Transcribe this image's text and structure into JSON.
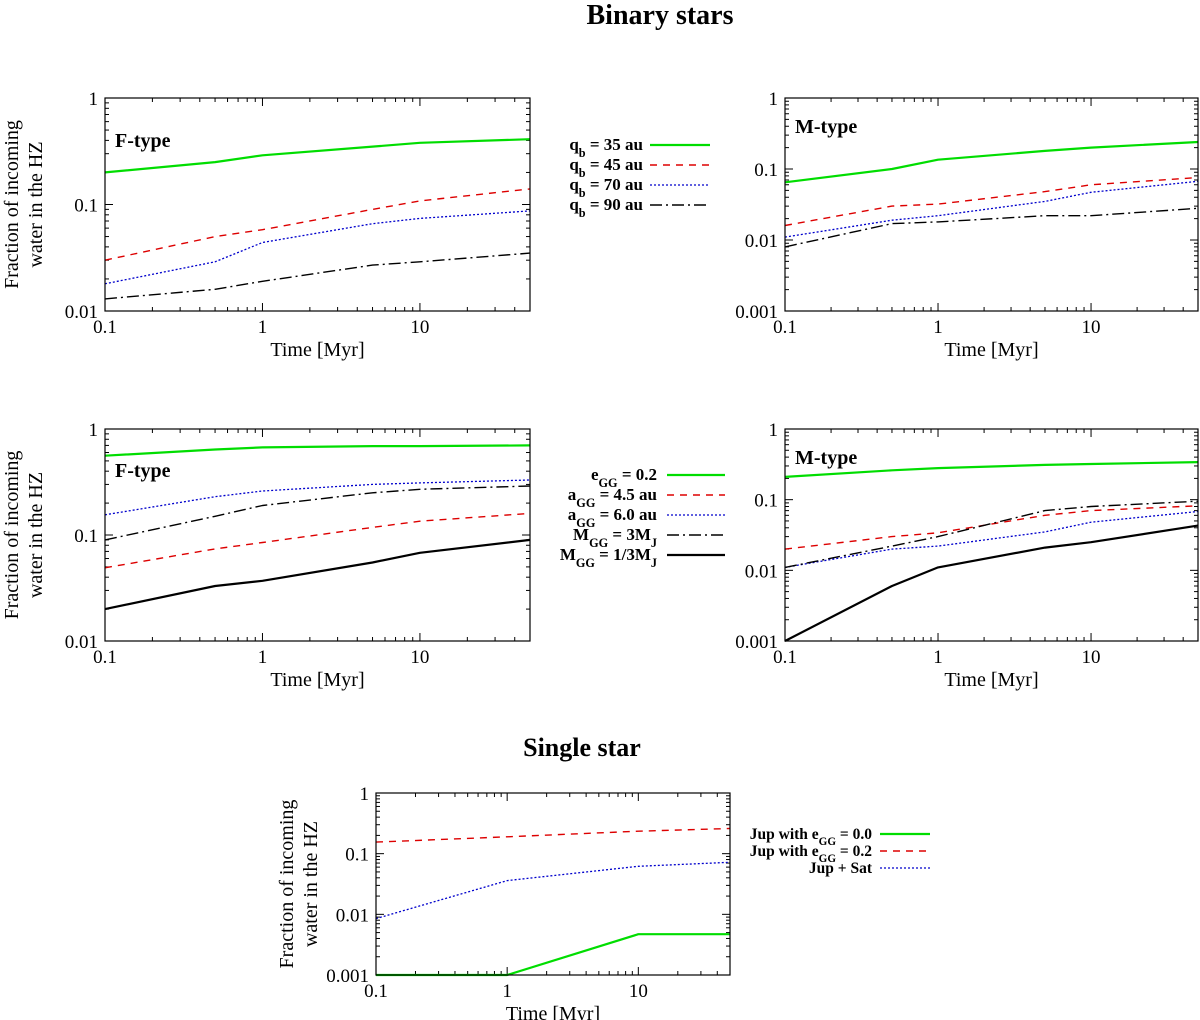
{
  "colors": {
    "green": "#00dd00",
    "red": "#dd0000",
    "blue": "#0000cc",
    "black": "#000000"
  },
  "figure": {
    "title_binary": "Binary stars",
    "title_single": "Single star"
  },
  "chart_data": [
    {
      "id": "tl",
      "type": "line",
      "annotation": "F-type",
      "xlabel": "Time [Myr]",
      "ylabel": [
        "Fraction of incoming",
        "water in the HZ"
      ],
      "xscale": "log",
      "yscale": "log",
      "xlim": [
        0.1,
        50
      ],
      "ylim": [
        0.01,
        1
      ],
      "xticks": [
        {
          "v": 0.1,
          "label": "0.1"
        },
        {
          "v": 1,
          "label": "1"
        },
        {
          "v": 10,
          "label": "10"
        }
      ],
      "yticks": [
        {
          "v": 0.01,
          "label": "0.01"
        },
        {
          "v": 0.1,
          "label": "0.1"
        },
        {
          "v": 1,
          "label": "1"
        }
      ],
      "series": [
        {
          "style": "solid-green",
          "x": [
            0.1,
            0.5,
            1,
            5,
            10,
            50
          ],
          "y": [
            0.2,
            0.25,
            0.29,
            0.35,
            0.38,
            0.41
          ]
        },
        {
          "style": "dash-red",
          "x": [
            0.1,
            0.5,
            1,
            5,
            10,
            50
          ],
          "y": [
            0.03,
            0.05,
            0.058,
            0.09,
            0.108,
            0.14
          ]
        },
        {
          "style": "dot-blue",
          "x": [
            0.1,
            0.5,
            1,
            5,
            10,
            50
          ],
          "y": [
            0.018,
            0.029,
            0.044,
            0.066,
            0.074,
            0.087
          ]
        },
        {
          "style": "dashdot-black",
          "x": [
            0.1,
            0.5,
            1,
            5,
            10,
            50
          ],
          "y": [
            0.013,
            0.016,
            0.019,
            0.027,
            0.029,
            0.035
          ]
        }
      ]
    },
    {
      "id": "tr",
      "type": "line",
      "annotation": "M-type",
      "xlabel": "Time [Myr]",
      "ylabel": null,
      "xscale": "log",
      "yscale": "log",
      "xlim": [
        0.1,
        50
      ],
      "ylim": [
        0.001,
        1
      ],
      "xticks": [
        {
          "v": 0.1,
          "label": "0.1"
        },
        {
          "v": 1,
          "label": "1"
        },
        {
          "v": 10,
          "label": "10"
        }
      ],
      "yticks": [
        {
          "v": 0.001,
          "label": "0.001"
        },
        {
          "v": 0.01,
          "label": "0.01"
        },
        {
          "v": 0.1,
          "label": "0.1"
        },
        {
          "v": 1,
          "label": "1"
        }
      ],
      "series": [
        {
          "style": "solid-green",
          "x": [
            0.1,
            0.5,
            1,
            5,
            10,
            50
          ],
          "y": [
            0.065,
            0.1,
            0.135,
            0.18,
            0.2,
            0.24
          ]
        },
        {
          "style": "dash-red",
          "x": [
            0.1,
            0.5,
            1,
            5,
            10,
            50
          ],
          "y": [
            0.016,
            0.03,
            0.032,
            0.048,
            0.06,
            0.076
          ]
        },
        {
          "style": "dot-blue",
          "x": [
            0.1,
            0.5,
            1,
            5,
            10,
            50
          ],
          "y": [
            0.011,
            0.019,
            0.022,
            0.035,
            0.047,
            0.067
          ]
        },
        {
          "style": "dashdot-black",
          "x": [
            0.1,
            0.5,
            1,
            5,
            10,
            50
          ],
          "y": [
            0.008,
            0.017,
            0.018,
            0.022,
            0.022,
            0.028
          ]
        }
      ]
    },
    {
      "id": "ml",
      "type": "line",
      "annotation": "F-type",
      "xlabel": "Time [Myr]",
      "ylabel": [
        "Fraction of incoming",
        "water in the HZ"
      ],
      "xscale": "log",
      "yscale": "log",
      "xlim": [
        0.1,
        50
      ],
      "ylim": [
        0.01,
        1
      ],
      "xticks": [
        {
          "v": 0.1,
          "label": "0.1"
        },
        {
          "v": 1,
          "label": "1"
        },
        {
          "v": 10,
          "label": "10"
        }
      ],
      "yticks": [
        {
          "v": 0.01,
          "label": "0.01"
        },
        {
          "v": 0.1,
          "label": "0.1"
        },
        {
          "v": 1,
          "label": "1"
        }
      ],
      "series": [
        {
          "style": "solid-green",
          "x": [
            0.1,
            0.5,
            1,
            5,
            10,
            50
          ],
          "y": [
            0.56,
            0.64,
            0.67,
            0.69,
            0.69,
            0.7
          ]
        },
        {
          "style": "dash-red",
          "x": [
            0.1,
            0.5,
            1,
            5,
            10,
            50
          ],
          "y": [
            0.049,
            0.074,
            0.085,
            0.118,
            0.135,
            0.16
          ]
        },
        {
          "style": "dot-blue",
          "x": [
            0.1,
            0.5,
            1,
            5,
            10,
            50
          ],
          "y": [
            0.155,
            0.23,
            0.26,
            0.3,
            0.31,
            0.33
          ]
        },
        {
          "style": "dashdot-black",
          "x": [
            0.1,
            0.5,
            1,
            5,
            10,
            50
          ],
          "y": [
            0.09,
            0.15,
            0.19,
            0.25,
            0.27,
            0.29
          ]
        },
        {
          "style": "solid-black",
          "x": [
            0.1,
            0.5,
            1,
            5,
            10,
            50
          ],
          "y": [
            0.02,
            0.033,
            0.037,
            0.055,
            0.068,
            0.09
          ]
        }
      ]
    },
    {
      "id": "mr",
      "type": "line",
      "annotation": "M-type",
      "xlabel": "Time [Myr]",
      "ylabel": null,
      "xscale": "log",
      "yscale": "log",
      "xlim": [
        0.1,
        50
      ],
      "ylim": [
        0.001,
        1
      ],
      "xticks": [
        {
          "v": 0.1,
          "label": "0.1"
        },
        {
          "v": 1,
          "label": "1"
        },
        {
          "v": 10,
          "label": "10"
        }
      ],
      "yticks": [
        {
          "v": 0.001,
          "label": "0.001"
        },
        {
          "v": 0.01,
          "label": "0.01"
        },
        {
          "v": 0.1,
          "label": "0.1"
        },
        {
          "v": 1,
          "label": "1"
        }
      ],
      "series": [
        {
          "style": "solid-green",
          "x": [
            0.1,
            0.5,
            1,
            5,
            10,
            50
          ],
          "y": [
            0.21,
            0.26,
            0.28,
            0.31,
            0.32,
            0.34
          ]
        },
        {
          "style": "dash-red",
          "x": [
            0.1,
            0.5,
            1,
            5,
            10,
            50
          ],
          "y": [
            0.02,
            0.03,
            0.034,
            0.06,
            0.07,
            0.082
          ]
        },
        {
          "style": "dot-blue",
          "x": [
            0.1,
            0.5,
            1,
            5,
            10,
            50
          ],
          "y": [
            0.011,
            0.02,
            0.022,
            0.035,
            0.048,
            0.068
          ]
        },
        {
          "style": "dashdot-black",
          "x": [
            0.1,
            0.5,
            1,
            5,
            10,
            50
          ],
          "y": [
            0.011,
            0.022,
            0.03,
            0.07,
            0.08,
            0.095
          ]
        },
        {
          "style": "solid-black",
          "x": [
            0.1,
            0.5,
            1,
            5,
            10,
            50
          ],
          "y": [
            0.001,
            0.006,
            0.011,
            0.021,
            0.025,
            0.043
          ]
        }
      ]
    },
    {
      "id": "bot",
      "type": "line",
      "annotation": null,
      "xlabel": "Time [Myr]",
      "ylabel": [
        "Fraction of incoming",
        "water in the HZ"
      ],
      "xscale": "log",
      "yscale": "log",
      "xlim": [
        0.1,
        50
      ],
      "ylim": [
        0.001,
        1
      ],
      "xticks": [
        {
          "v": 0.1,
          "label": "0.1"
        },
        {
          "v": 1,
          "label": "1"
        },
        {
          "v": 10,
          "label": "10"
        }
      ],
      "yticks": [
        {
          "v": 0.001,
          "label": "0.001"
        },
        {
          "v": 0.01,
          "label": "0.01"
        },
        {
          "v": 0.1,
          "label": "0.1"
        },
        {
          "v": 1,
          "label": "1"
        }
      ],
      "series": [
        {
          "style": "solid-green",
          "x": [
            0.1,
            1,
            10,
            50
          ],
          "y": [
            0.001,
            0.001,
            0.0047,
            0.0047
          ]
        },
        {
          "style": "dash-red",
          "x": [
            0.1,
            1,
            10,
            50
          ],
          "y": [
            0.155,
            0.19,
            0.235,
            0.26
          ]
        },
        {
          "style": "dot-blue",
          "x": [
            0.1,
            1,
            10,
            50
          ],
          "y": [
            0.0085,
            0.036,
            0.062,
            0.072
          ]
        },
        {
          "style": "dashdot-black",
          "x": [],
          "y": []
        }
      ]
    }
  ],
  "legends": [
    {
      "id": "legend1",
      "items": [
        {
          "style": "solid-green",
          "main": "q",
          "sub": "b",
          "rest": " = 35 au",
          "rest2": "",
          "sub2": ""
        },
        {
          "style": "dash-red",
          "main": "q",
          "sub": "b",
          "rest": " = 45 au",
          "rest2": "",
          "sub2": ""
        },
        {
          "style": "dot-blue",
          "main": "q",
          "sub": "b",
          "rest": " = 70 au",
          "rest2": "",
          "sub2": ""
        },
        {
          "style": "dashdot-black",
          "main": "q",
          "sub": "b",
          "rest": " = 90 au",
          "rest2": "",
          "sub2": ""
        }
      ]
    },
    {
      "id": "legend2",
      "items": [
        {
          "style": "solid-green",
          "main": "e",
          "sub": "GG",
          "rest": " = 0.2",
          "rest2": "",
          "sub2": ""
        },
        {
          "style": "dash-red",
          "main": "a",
          "sub": "GG",
          "rest": " = 4.5 au",
          "rest2": "",
          "sub2": ""
        },
        {
          "style": "dot-blue",
          "main": "a",
          "sub": "GG",
          "rest": " = 6.0 au",
          "rest2": "",
          "sub2": ""
        },
        {
          "style": "dashdot-black",
          "main": "M",
          "sub": "GG",
          "rest": " = 3M",
          "sub2": "J",
          "rest2": ""
        },
        {
          "style": "solid-black",
          "main": "M",
          "sub": "GG",
          "rest": " = 1/3M",
          "sub2": "J",
          "rest2": ""
        }
      ]
    },
    {
      "id": "legend3",
      "items": [
        {
          "style": "solid-green",
          "main": "Jup with e",
          "sub": "GG",
          "rest": " = 0.0",
          "rest2": "",
          "sub2": ""
        },
        {
          "style": "dash-red",
          "main": "Jup with e",
          "sub": "GG",
          "rest": " = 0.2",
          "rest2": "",
          "sub2": ""
        },
        {
          "style": "dot-blue",
          "main": "Jup + Sat",
          "sub": "",
          "rest": "",
          "rest2": "",
          "sub2": ""
        }
      ]
    }
  ]
}
